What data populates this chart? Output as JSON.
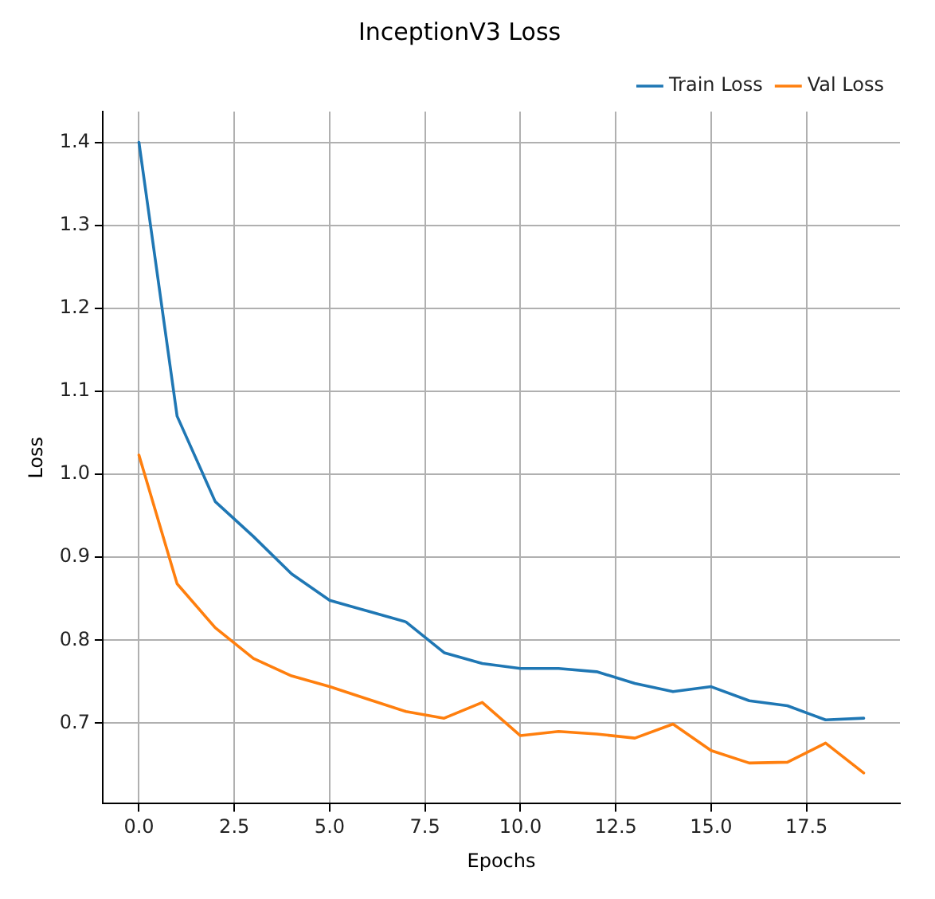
{
  "chart_data": {
    "type": "line",
    "title": "InceptionV3 Loss",
    "xlabel": "Epochs",
    "ylabel": "Loss",
    "x": [
      0,
      1,
      2,
      3,
      4,
      5,
      6,
      7,
      8,
      9,
      10,
      11,
      12,
      13,
      14,
      15,
      16,
      17,
      18,
      19
    ],
    "series": [
      {
        "name": "Train Loss",
        "color": "#1f77b4",
        "values": [
          1.4,
          1.07,
          0.967,
          0.925,
          0.88,
          0.848,
          0.835,
          0.822,
          0.785,
          0.772,
          0.766,
          0.766,
          0.762,
          0.748,
          0.738,
          0.744,
          0.727,
          0.721,
          0.704,
          0.706
        ]
      },
      {
        "name": "Val Loss",
        "color": "#ff7f0e",
        "values": [
          1.023,
          0.868,
          0.815,
          0.778,
          0.757,
          0.744,
          0.729,
          0.714,
          0.706,
          0.725,
          0.685,
          0.69,
          0.687,
          0.682,
          0.699,
          0.667,
          0.652,
          0.653,
          0.676,
          0.64
        ]
      }
    ],
    "xlim": [
      -0.95,
      19.95
    ],
    "ylim": [
      0.603,
      1.437
    ],
    "xticks": [
      {
        "value": 0,
        "label": "0.0"
      },
      {
        "value": 2.5,
        "label": "2.5"
      },
      {
        "value": 5,
        "label": "5.0"
      },
      {
        "value": 7.5,
        "label": "7.5"
      },
      {
        "value": 10,
        "label": "10.0"
      },
      {
        "value": 12.5,
        "label": "12.5"
      },
      {
        "value": 15,
        "label": "15.0"
      },
      {
        "value": 17.5,
        "label": "17.5"
      }
    ],
    "yticks": [
      {
        "value": 0.7,
        "label": "0.7"
      },
      {
        "value": 0.8,
        "label": "0.8"
      },
      {
        "value": 0.9,
        "label": "0.9"
      },
      {
        "value": 1.0,
        "label": "1.0"
      },
      {
        "value": 1.1,
        "label": "1.1"
      },
      {
        "value": 1.2,
        "label": "1.2"
      },
      {
        "value": 1.3,
        "label": "1.3"
      },
      {
        "value": 1.4,
        "label": "1.4"
      }
    ],
    "grid": true,
    "legend": "top right",
    "marker": "none",
    "line_style": "solid"
  }
}
